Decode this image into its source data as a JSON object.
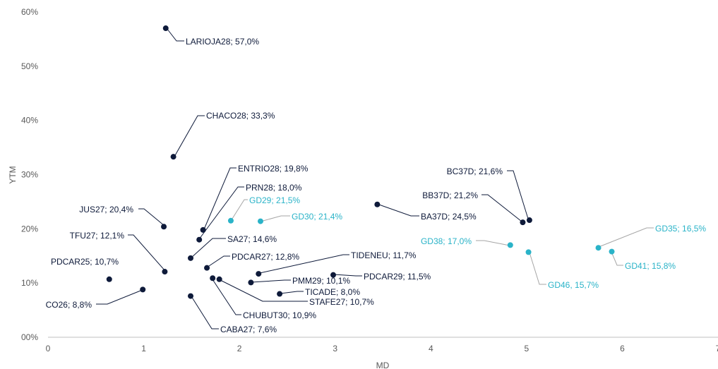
{
  "chart_data": {
    "type": "scatter",
    "xlabel": "MD",
    "ylabel": "YTM",
    "xlim": [
      0,
      7
    ],
    "ylim": [
      0,
      60
    ],
    "x_ticks": [
      "0",
      "1",
      "2",
      "3",
      "4",
      "5",
      "6",
      "7"
    ],
    "y_ticks": [
      "00%",
      "10%",
      "20%",
      "30%",
      "40%",
      "50%",
      "60%"
    ],
    "grid": false,
    "colors": {
      "dark": "#0e1a3a",
      "light": "#2ab3c8",
      "axis": "#bfbfbf",
      "leader_dark": "#0e1a3a",
      "leader_light": "#a6a6a6"
    },
    "series": [
      {
        "color_key": "dark",
        "points": [
          {
            "label": "LARIOJA28; 57,0%",
            "x": 1.23,
            "y": 57.0
          },
          {
            "label": "CHACO28; 33,3%",
            "x": 1.31,
            "y": 33.3
          },
          {
            "label": "ENTRIO28; 19,8%",
            "x": 1.62,
            "y": 19.8
          },
          {
            "label": "PRN28; 18,0%",
            "x": 1.58,
            "y": 18.0
          },
          {
            "label": "JUS27; 20,4%",
            "x": 1.21,
            "y": 20.4
          },
          {
            "label": "TFU27; 12,1%",
            "x": 1.22,
            "y": 12.1
          },
          {
            "label": "PDCAR25; 10,7%",
            "x": 0.64,
            "y": 10.7
          },
          {
            "label": "CO26; 8,8%",
            "x": 0.99,
            "y": 8.8
          },
          {
            "label": "SA27; 14,6%",
            "x": 1.49,
            "y": 14.6
          },
          {
            "label": "PDCAR27; 12,8%",
            "x": 1.66,
            "y": 12.8
          },
          {
            "label": "TIDENEU; 11,7%",
            "x": 2.2,
            "y": 11.7
          },
          {
            "label": "PDCAR29; 11,5%",
            "x": 2.98,
            "y": 11.5
          },
          {
            "label": "PMM29; 10,1%",
            "x": 2.12,
            "y": 10.1
          },
          {
            "label": "TICADE; 8,0%",
            "x": 2.42,
            "y": 8.0
          },
          {
            "label": "STAFE27; 10,7%",
            "x": 1.79,
            "y": 10.7
          },
          {
            "label": "CHUBUT30; 10,9%",
            "x": 1.72,
            "y": 10.9
          },
          {
            "label": "CABA27; 7,6%",
            "x": 1.49,
            "y": 7.6
          },
          {
            "label": "BC37D; 21,6%",
            "x": 5.03,
            "y": 21.6
          },
          {
            "label": "BB37D; 21,2%",
            "x": 4.96,
            "y": 21.2
          },
          {
            "label": "BA37D; 24,5%",
            "x": 3.44,
            "y": 24.5
          }
        ]
      },
      {
        "color_key": "light",
        "points": [
          {
            "label": "GD29; 21,5%",
            "x": 1.91,
            "y": 21.5
          },
          {
            "label": "GD30; 21,4%",
            "x": 2.22,
            "y": 21.4
          },
          {
            "label": "GD38; 17,0%",
            "x": 4.83,
            "y": 17.0
          },
          {
            "label": "GD46, 15,7%",
            "x": 5.02,
            "y": 15.7
          },
          {
            "label": "GD35; 16,5%",
            "x": 5.75,
            "y": 16.5
          },
          {
            "label": "GD41; 15,8%",
            "x": 5.89,
            "y": 15.8
          }
        ]
      }
    ]
  }
}
